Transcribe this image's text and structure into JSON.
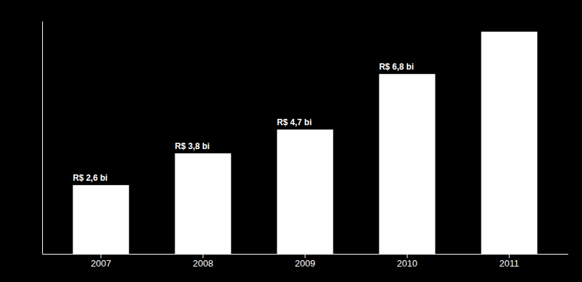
{
  "chart_data": {
    "type": "bar",
    "categories": [
      "2007",
      "2008",
      "2009",
      "2010",
      "2011"
    ],
    "values": [
      2.6,
      3.8,
      4.7,
      6.8,
      8.4
    ],
    "value_labels": [
      "R$ 2,6 bi",
      "R$ 3,8 bi",
      "R$ 4,7 bi",
      "R$ 6,8 bi",
      null
    ],
    "color": "#ffffff",
    "ylim": [
      0,
      8.8
    ],
    "yticks": [],
    "tick_labels": "x",
    "data_labels": true
  }
}
